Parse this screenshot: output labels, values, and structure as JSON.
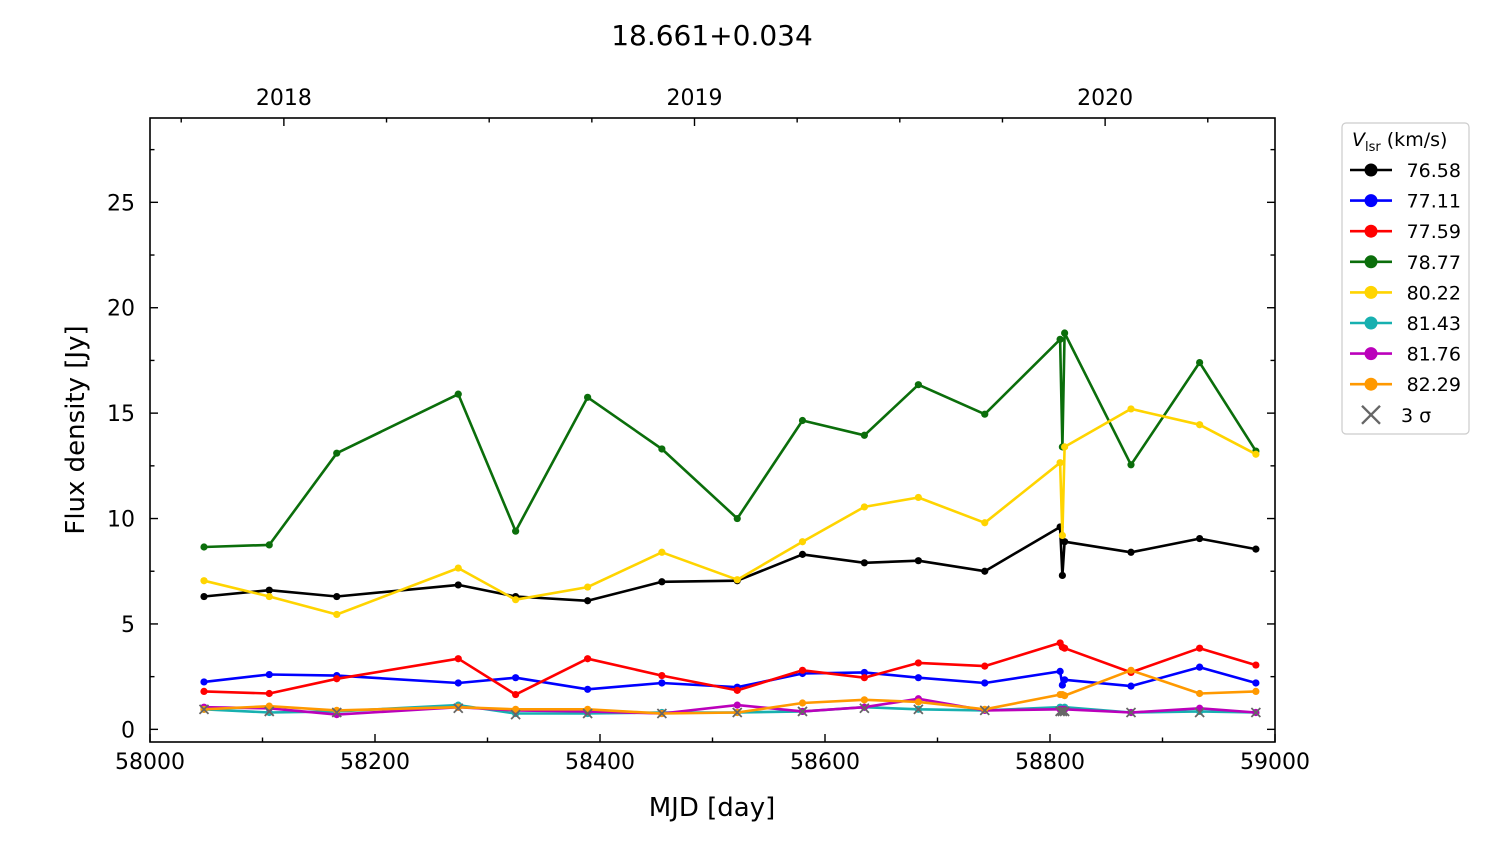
{
  "chart_data": {
    "type": "line",
    "title": "18.661+0.034",
    "xlabel": "MJD [day]",
    "ylabel": "Flux density [Jy]",
    "xlim": [
      58000,
      59000
    ],
    "ylim": [
      -0.6,
      29
    ],
    "xticks": [
      58000,
      58200,
      58400,
      58600,
      58800,
      59000
    ],
    "yticks": [
      0,
      5,
      10,
      15,
      20,
      25
    ],
    "top_axis": {
      "ticks": [
        {
          "label": "2018",
          "mjd": 58119
        },
        {
          "label": "2019",
          "mjd": 58484
        },
        {
          "label": "2020",
          "mjd": 58849
        }
      ]
    },
    "legend": {
      "title_main": "V",
      "title_sub": "lsr",
      "title_unit": " (km/s)",
      "placement": "upper-right-outside",
      "sigma_label": "3 σ"
    },
    "x": [
      58048,
      58106,
      58166,
      58274,
      58325,
      58389,
      58455,
      58522,
      58580,
      58635,
      58683,
      58742,
      58809,
      58811,
      58813,
      58872,
      58933,
      58983
    ],
    "series": [
      {
        "name": "76.58",
        "color": "#000000",
        "values": [
          6.3,
          6.6,
          6.3,
          6.85,
          6.3,
          6.1,
          7.0,
          7.05,
          8.3,
          7.9,
          8.0,
          7.5,
          9.6,
          7.3,
          8.9,
          8.4,
          9.05,
          8.55
        ]
      },
      {
        "name": "77.11",
        "color": "#0000ff",
        "values": [
          2.25,
          2.6,
          2.55,
          2.2,
          2.45,
          1.9,
          2.2,
          2.0,
          2.65,
          2.7,
          2.45,
          2.2,
          2.75,
          2.1,
          2.35,
          2.05,
          2.95,
          2.2
        ]
      },
      {
        "name": "77.59",
        "color": "#ff0000",
        "values": [
          1.8,
          1.7,
          2.4,
          3.35,
          1.65,
          3.35,
          2.55,
          1.85,
          2.8,
          2.45,
          3.15,
          3.0,
          4.1,
          3.9,
          3.85,
          2.7,
          3.85,
          3.05
        ]
      },
      {
        "name": "78.77",
        "color": "#0b6e0b",
        "values": [
          8.65,
          8.75,
          13.1,
          15.9,
          9.4,
          15.75,
          13.3,
          10.0,
          14.65,
          13.95,
          16.35,
          14.95,
          18.5,
          13.4,
          18.8,
          12.55,
          17.4,
          13.2
        ]
      },
      {
        "name": "80.22",
        "color": "#ffd400",
        "values": [
          7.05,
          6.3,
          5.45,
          7.65,
          6.15,
          6.75,
          8.4,
          7.1,
          8.9,
          10.55,
          11.0,
          9.8,
          12.65,
          9.2,
          13.4,
          15.2,
          14.45,
          13.05
        ]
      },
      {
        "name": "81.43",
        "color": "#17b0b0",
        "values": [
          0.95,
          0.8,
          0.85,
          1.15,
          0.75,
          0.75,
          0.8,
          0.8,
          0.85,
          1.05,
          0.95,
          0.9,
          1.05,
          1.0,
          1.05,
          0.8,
          0.85,
          0.8
        ]
      },
      {
        "name": "81.76",
        "color": "#bb00bb",
        "values": [
          1.05,
          1.0,
          0.7,
          1.05,
          0.9,
          0.85,
          0.75,
          1.15,
          0.85,
          1.05,
          1.45,
          0.9,
          0.95,
          0.95,
          0.95,
          0.8,
          1.0,
          0.8
        ]
      },
      {
        "name": "82.29",
        "color": "#ff9900",
        "values": [
          0.95,
          1.1,
          0.9,
          1.05,
          0.95,
          0.95,
          0.75,
          0.8,
          1.25,
          1.4,
          1.3,
          0.95,
          1.65,
          1.65,
          1.6,
          2.8,
          1.7,
          1.8
        ]
      }
    ],
    "sigma_3": {
      "color": "#666666",
      "values": [
        0.95,
        0.85,
        0.8,
        1.0,
        0.7,
        0.75,
        0.75,
        0.8,
        0.85,
        1.0,
        0.95,
        0.9,
        0.85,
        0.85,
        0.85,
        0.8,
        0.8,
        0.8
      ]
    }
  }
}
